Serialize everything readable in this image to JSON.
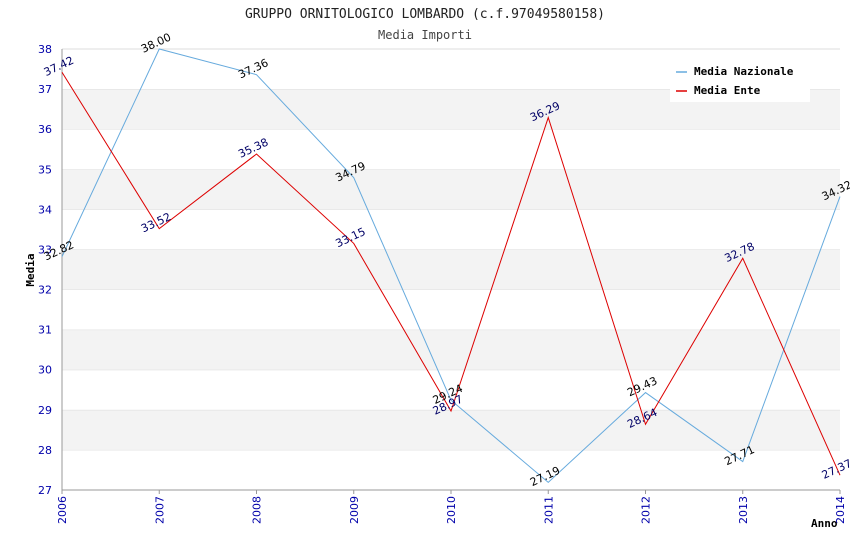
{
  "chart_data": {
    "type": "line",
    "title": "GRUPPO ORNITOLOGICO LOMBARDO (c.f.97049580158)",
    "subtitle": "Media Importi",
    "xlabel": "Anno",
    "ylabel": "Media",
    "categories": [
      "2006",
      "2007",
      "2008",
      "2009",
      "2010",
      "2011",
      "2012",
      "2013",
      "2014"
    ],
    "ylim": [
      27,
      38
    ],
    "yticks": [
      "27",
      "28",
      "29",
      "30",
      "31",
      "32",
      "33",
      "34",
      "35",
      "36",
      "37",
      "38"
    ],
    "grid": "horizontal alternating bands",
    "legend_position": "top-right",
    "series": [
      {
        "name": "Media Nazionale",
        "color": "#66aadd",
        "label_color": "#000000",
        "values": [
          32.82,
          38.0,
          37.36,
          34.79,
          29.24,
          27.19,
          29.43,
          27.71,
          34.32
        ],
        "labels": [
          "32.82",
          "38.00",
          "37.36",
          "34.79",
          "29.24",
          "27.19",
          "29.43",
          "27.71",
          "34.32"
        ]
      },
      {
        "name": "Media Ente",
        "color": "#dd0000",
        "label_color": "#000066",
        "values": [
          37.42,
          33.52,
          35.38,
          33.15,
          28.97,
          36.29,
          28.64,
          32.78,
          27.37
        ],
        "labels": [
          "37.42",
          "33.52",
          "35.38",
          "33.15",
          "28.97",
          "36.29",
          "28.64",
          "32.78",
          "27.37"
        ]
      }
    ]
  }
}
